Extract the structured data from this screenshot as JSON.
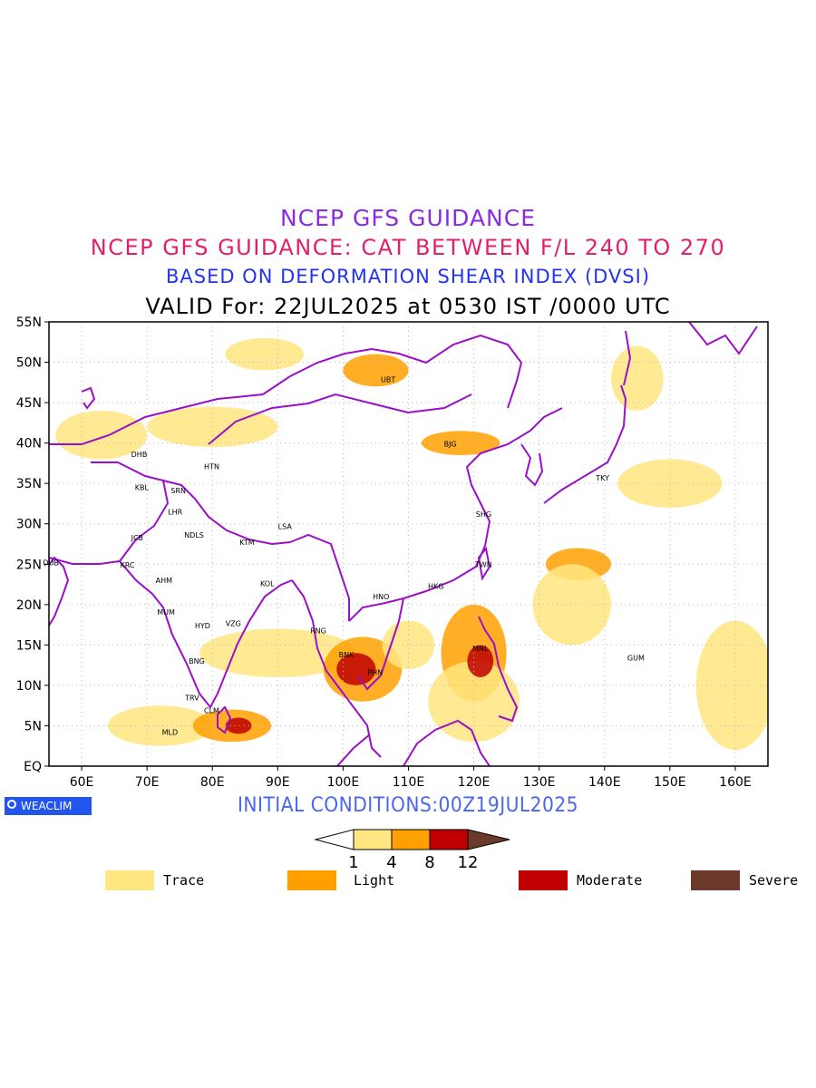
{
  "titles": {
    "line1": "NCEP GFS GUIDANCE",
    "line2": "NCEP GFS GUIDANCE: CAT BETWEEN F/L 240 TO 270",
    "line3": "BASED ON DEFORMATION SHEAR INDEX (DVSI)",
    "line4": "VALID For: 22JUL2025 at 0530 IST /0000 UTC"
  },
  "map": {
    "lat_labels": [
      "EQ",
      "5N",
      "10N",
      "15N",
      "20N",
      "25N",
      "30N",
      "35N",
      "40N",
      "45N",
      "50N",
      "55N"
    ],
    "lon_labels": [
      "60E",
      "70E",
      "80E",
      "90E",
      "100E",
      "110E",
      "120E",
      "130E",
      "140E",
      "150E",
      "160E"
    ],
    "lat_range": [
      0,
      55
    ],
    "lon_range": [
      55,
      165
    ],
    "grid": true,
    "stations": [
      {
        "code": "UBT",
        "lon": 106.9,
        "lat": 47.9
      },
      {
        "code": "BJG",
        "lon": 116.4,
        "lat": 39.9
      },
      {
        "code": "TKY",
        "lon": 139.7,
        "lat": 35.7
      },
      {
        "code": "SHG",
        "lon": 121.5,
        "lat": 31.2
      },
      {
        "code": "TWN",
        "lon": 121.5,
        "lat": 25.0
      },
      {
        "code": "HKG",
        "lon": 114.2,
        "lat": 22.3
      },
      {
        "code": "HNO",
        "lon": 105.8,
        "lat": 21.0
      },
      {
        "code": "MNL",
        "lon": 121.0,
        "lat": 14.6
      },
      {
        "code": "BNK",
        "lon": 100.5,
        "lat": 13.8
      },
      {
        "code": "PHN",
        "lon": 104.9,
        "lat": 11.6
      },
      {
        "code": "RNG",
        "lon": 96.2,
        "lat": 16.8
      },
      {
        "code": "GUM",
        "lon": 144.8,
        "lat": 13.4
      },
      {
        "code": "LSA",
        "lon": 91.1,
        "lat": 29.7
      },
      {
        "code": "KTM",
        "lon": 85.3,
        "lat": 27.7
      },
      {
        "code": "KOL",
        "lon": 88.4,
        "lat": 22.6
      },
      {
        "code": "VZG",
        "lon": 83.2,
        "lat": 17.7
      },
      {
        "code": "HYD",
        "lon": 78.5,
        "lat": 17.4
      },
      {
        "code": "BNG",
        "lon": 77.6,
        "lat": 13.0
      },
      {
        "code": "TRV",
        "lon": 76.9,
        "lat": 8.5
      },
      {
        "code": "CLM",
        "lon": 79.9,
        "lat": 6.9
      },
      {
        "code": "MLD",
        "lon": 73.5,
        "lat": 4.2
      },
      {
        "code": "MUM",
        "lon": 72.9,
        "lat": 19.1
      },
      {
        "code": "AHM",
        "lon": 72.6,
        "lat": 23.0
      },
      {
        "code": "KRC",
        "lon": 67.0,
        "lat": 24.9
      },
      {
        "code": "JCB",
        "lon": 68.5,
        "lat": 28.3
      },
      {
        "code": "DUB",
        "lon": 55.3,
        "lat": 25.2
      },
      {
        "code": "NDLS",
        "lon": 77.2,
        "lat": 28.6
      },
      {
        "code": "LHR",
        "lon": 74.3,
        "lat": 31.5
      },
      {
        "code": "SRN",
        "lon": 74.8,
        "lat": 34.1
      },
      {
        "code": "KBL",
        "lon": 69.2,
        "lat": 34.5
      },
      {
        "code": "DHB",
        "lon": 68.8,
        "lat": 38.6
      },
      {
        "code": "HTN",
        "lon": 79.9,
        "lat": 37.1
      }
    ],
    "turbulence_patches": [
      {
        "lon": 72,
        "lat": 5,
        "rx": 8,
        "ry": 2.5,
        "level": "trace"
      },
      {
        "lon": 83,
        "lat": 5,
        "rx": 6,
        "ry": 2,
        "level": "light"
      },
      {
        "lon": 90,
        "lat": 14,
        "rx": 12,
        "ry": 3,
        "level": "trace"
      },
      {
        "lon": 103,
        "lat": 12,
        "rx": 6,
        "ry": 4,
        "level": "light"
      },
      {
        "lon": 120,
        "lat": 14,
        "rx": 5,
        "ry": 6,
        "level": "light"
      },
      {
        "lon": 120,
        "lat": 8,
        "rx": 7,
        "ry": 5,
        "level": "trace"
      },
      {
        "lon": 136,
        "lat": 25,
        "rx": 5,
        "ry": 2,
        "level": "light"
      },
      {
        "lon": 80,
        "lat": 42,
        "rx": 10,
        "ry": 2.5,
        "level": "trace"
      },
      {
        "lon": 105,
        "lat": 49,
        "rx": 5,
        "ry": 2,
        "level": "light"
      },
      {
        "lon": 118,
        "lat": 40,
        "rx": 6,
        "ry": 1.5,
        "level": "light"
      },
      {
        "lon": 160,
        "lat": 10,
        "rx": 6,
        "ry": 8,
        "level": "trace"
      },
      {
        "lon": 150,
        "lat": 35,
        "rx": 8,
        "ry": 3,
        "level": "trace"
      },
      {
        "lon": 63,
        "lat": 41,
        "rx": 7,
        "ry": 3,
        "level": "trace"
      },
      {
        "lon": 135,
        "lat": 20,
        "rx": 6,
        "ry": 5,
        "level": "trace"
      },
      {
        "lon": 110,
        "lat": 15,
        "rx": 4,
        "ry": 3,
        "level": "trace"
      },
      {
        "lon": 88,
        "lat": 51,
        "rx": 6,
        "ry": 2,
        "level": "trace"
      },
      {
        "lon": 145,
        "lat": 48,
        "rx": 4,
        "ry": 4,
        "level": "trace"
      },
      {
        "lon": 102,
        "lat": 12,
        "rx": 3,
        "ry": 2,
        "level": "moderate"
      },
      {
        "lon": 121,
        "lat": 13,
        "rx": 2,
        "ry": 2,
        "level": "moderate"
      },
      {
        "lon": 84,
        "lat": 5,
        "rx": 2,
        "ry": 1,
        "level": "moderate"
      }
    ],
    "colors": {
      "coast": "#9a10c8",
      "grid": "#bbbbbb"
    }
  },
  "footer": {
    "initial_conditions": "INITIAL CONDITIONS:00Z19JUL2025",
    "logo_text": "WEACLIM"
  },
  "colorbar": {
    "ticks": [
      "1",
      "4",
      "8",
      "12"
    ],
    "colors": [
      "#ffe680",
      "#ffa000",
      "#c00000",
      "#6b3a2a"
    ]
  },
  "legend": [
    {
      "label": "Trace",
      "color": "#ffe680"
    },
    {
      "label": "Light",
      "color": "#ffa000"
    },
    {
      "label": "Moderate",
      "color": "#c00000"
    },
    {
      "label": "Severe",
      "color": "#6b3a2a"
    }
  ]
}
